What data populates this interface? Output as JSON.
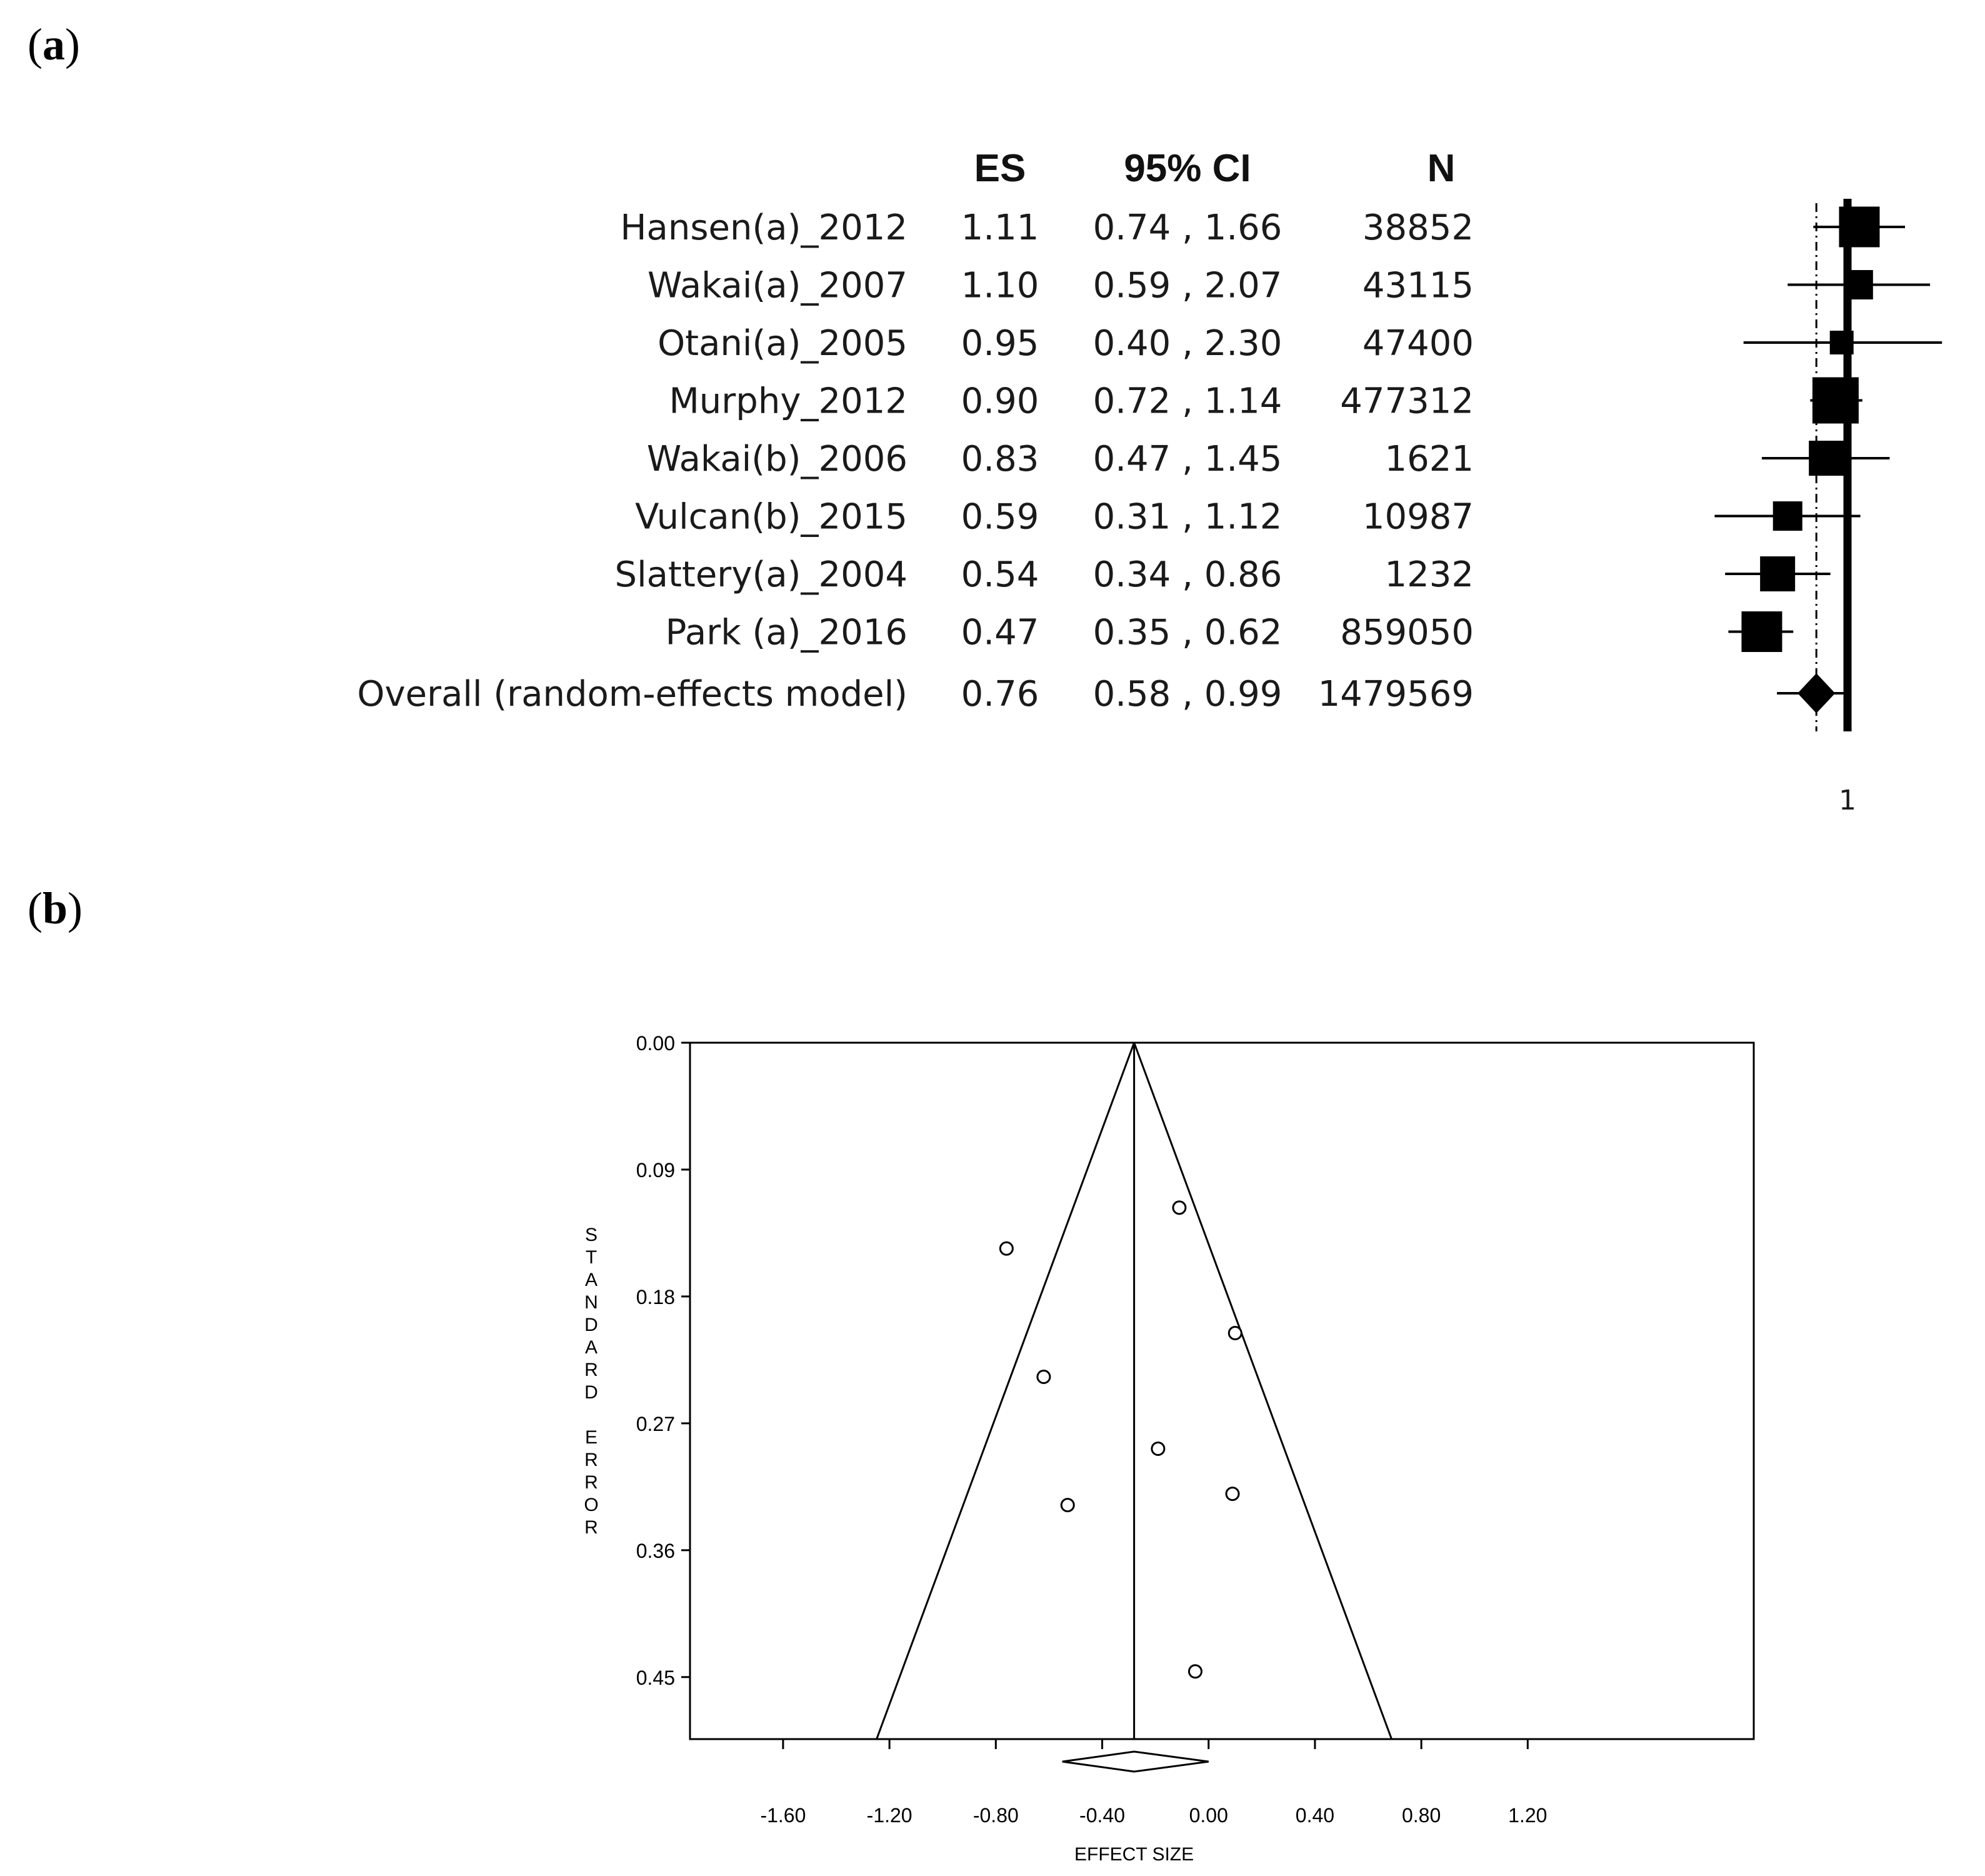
{
  "panels": {
    "a_open": "(",
    "a_letter": "a",
    "a_close": ")",
    "b_open": "(",
    "b_letter": "b",
    "b_close": ")"
  },
  "chart_data": [
    {
      "type": "forest",
      "headers": {
        "es": "ES",
        "ci": "95% CI",
        "n": "N"
      },
      "studies": [
        {
          "name": "Hansen(a)_2012",
          "es": "1.11",
          "ci": "0.74 , 1.66",
          "n": "38852",
          "es_v": 1.11,
          "lo": 0.74,
          "hi": 1.66,
          "weight": 5
        },
        {
          "name": "Wakai(a)_2007",
          "es": "1.10",
          "ci": "0.59 , 2.07",
          "n": "43115",
          "es_v": 1.1,
          "lo": 0.59,
          "hi": 2.07,
          "weight": 3
        },
        {
          "name": "Otani(a)_2005",
          "es": "0.95",
          "ci": "0.40 , 2.30",
          "n": "47400",
          "es_v": 0.95,
          "lo": 0.4,
          "hi": 2.3,
          "weight": 2
        },
        {
          "name": "Murphy_2012",
          "es": "0.90",
          "ci": "0.72 , 1.14",
          "n": "477312",
          "es_v": 0.9,
          "lo": 0.72,
          "hi": 1.14,
          "weight": 6
        },
        {
          "name": "Wakai(b)_2006",
          "es": "0.83",
          "ci": "0.47 , 1.45",
          "n": "1621",
          "es_v": 0.83,
          "lo": 0.47,
          "hi": 1.45,
          "weight": 4
        },
        {
          "name": "Vulcan(b)_2015",
          "es": "0.59",
          "ci": "0.31 , 1.12",
          "n": "10987",
          "es_v": 0.59,
          "lo": 0.31,
          "hi": 1.12,
          "weight": 3
        },
        {
          "name": "Slattery(a)_2004",
          "es": "0.54",
          "ci": "0.34 , 0.86",
          "n": "1232",
          "es_v": 0.54,
          "lo": 0.34,
          "hi": 0.86,
          "weight": 4
        },
        {
          "name": "Park (a)_2016",
          "es": "0.47",
          "ci": "0.35 , 0.62",
          "n": "859050",
          "es_v": 0.47,
          "lo": 0.35,
          "hi": 0.62,
          "weight": 5
        }
      ],
      "overall": {
        "name": "Overall (random-effects model)",
        "es": "0.76",
        "ci": "0.58 , 0.99",
        "n": "1479569",
        "es_v": 0.76,
        "lo": 0.58,
        "hi": 0.99
      },
      "reference_value": 1,
      "reference_label": "1",
      "scale": "log"
    },
    {
      "type": "scatter",
      "subtype": "funnel",
      "xlabel": "EFFECT SIZE",
      "ylabel": "STANDARD ERROR",
      "xlim": [
        -1.95,
        2.05
      ],
      "ylim": [
        0.0,
        0.494
      ],
      "xticks": [
        -1.6,
        -1.2,
        -0.8,
        -0.4,
        0.0,
        0.4,
        0.8,
        1.2
      ],
      "xtick_labels": [
        "-1.60",
        "-1.20",
        "-0.80",
        "-0.40",
        "0.00",
        "0.40",
        "0.80",
        "1.20"
      ],
      "yticks": [
        0.0,
        0.09,
        0.18,
        0.27,
        0.36,
        0.45
      ],
      "ytick_labels": [
        "0.00",
        "0.09",
        "0.18",
        "0.27",
        "0.36",
        "0.45"
      ],
      "center": -0.28,
      "points": [
        {
          "x": -0.11,
          "y": 0.117
        },
        {
          "x": -0.76,
          "y": 0.146
        },
        {
          "x": 0.1,
          "y": 0.206
        },
        {
          "x": -0.62,
          "y": 0.237
        },
        {
          "x": -0.19,
          "y": 0.288
        },
        {
          "x": 0.09,
          "y": 0.32
        },
        {
          "x": -0.53,
          "y": 0.328
        },
        {
          "x": -0.05,
          "y": 0.446
        }
      ],
      "diamond": {
        "center": -0.28,
        "lo": -0.55,
        "hi": 0.0
      }
    }
  ]
}
